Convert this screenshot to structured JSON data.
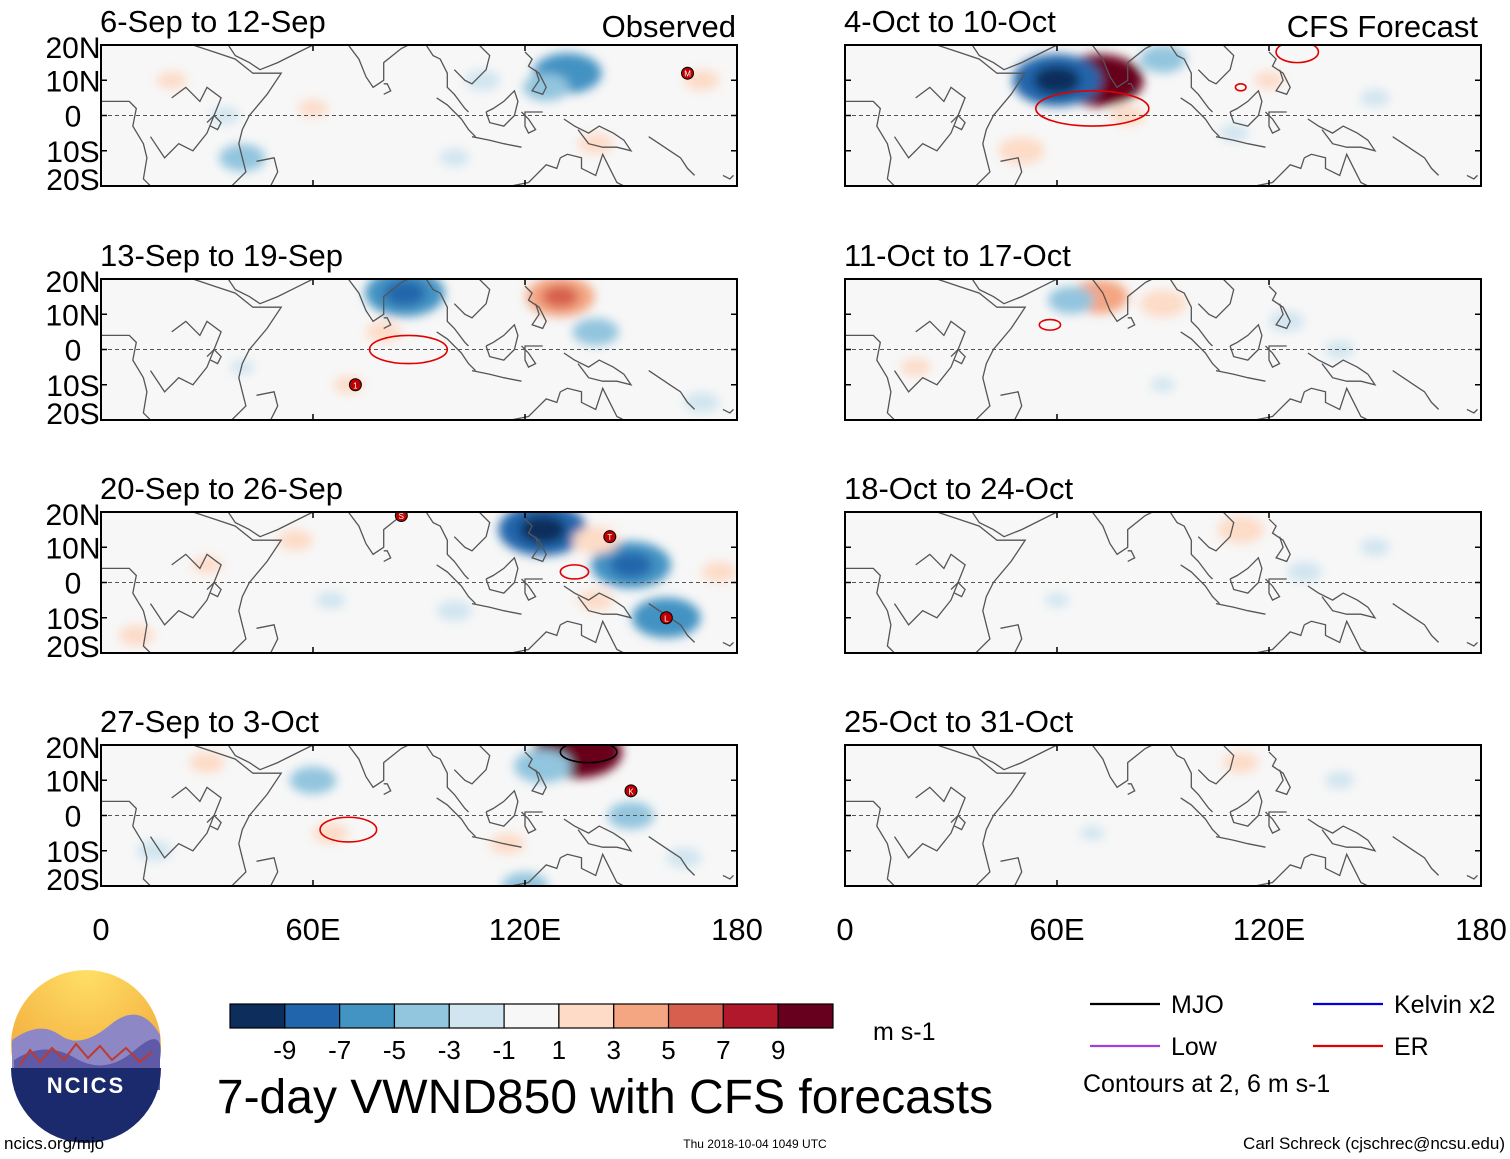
{
  "title": "7-day VWND850 with CFS forecasts",
  "left_header": "Observed",
  "right_header": "CFS Forecast",
  "units": "m s-1",
  "footer": {
    "url": "ncics.org/mjo",
    "timestamp": "Thu 2018-10-04 1049 UTC",
    "author": "Carl Schreck (cjschrec@ncsu.edu)"
  },
  "logo_text": "NCICS",
  "colorbar": {
    "colors": [
      "#0d2e5c",
      "#2166ac",
      "#4393c3",
      "#92c5de",
      "#d1e5f0",
      "#f7f7f7",
      "#fddbc7",
      "#f4a582",
      "#d6604d",
      "#b2182b",
      "#67001f"
    ],
    "labels": [
      "-9",
      "-7",
      "-5",
      "-3",
      "-1",
      "1",
      "3",
      "5",
      "7",
      "9"
    ]
  },
  "legend": {
    "items": [
      {
        "label": "MJO",
        "color": "#000000"
      },
      {
        "label": "Kelvin x2",
        "color": "#0000dd"
      },
      {
        "label": "Low",
        "color": "#a040e0"
      },
      {
        "label": "ER",
        "color": "#e00000"
      }
    ],
    "note": "Contours at 2, 6 m s-1"
  },
  "chart_data": {
    "type": "heatmap",
    "variable": "VWND850",
    "lon_range": [
      0,
      180
    ],
    "lat_range": [
      -20,
      20
    ],
    "x_ticks": [
      "0",
      "60E",
      "120E",
      "180"
    ],
    "y_ticks": [
      "20N",
      "10N",
      "0",
      "10S",
      "20S"
    ],
    "panels": [
      {
        "title": "6-Sep to 12-Sep",
        "kind": "observed",
        "anomalies": [
          {
            "lon": 132,
            "lat": 12,
            "v": -5
          },
          {
            "lon": 126,
            "lat": 8,
            "v": -3
          },
          {
            "lon": 108,
            "lat": 10,
            "v": -2
          },
          {
            "lon": 170,
            "lat": 10,
            "v": 2
          },
          {
            "lon": 60,
            "lat": 2,
            "v": 1.5
          },
          {
            "lon": 80,
            "lat": -8,
            "v": 1
          },
          {
            "lon": 140,
            "lat": -8,
            "v": 2
          },
          {
            "lon": 40,
            "lat": -12,
            "v": -3
          },
          {
            "lon": 35,
            "lat": 0,
            "v": -1.5
          },
          {
            "lon": 100,
            "lat": -12,
            "v": -1.5
          },
          {
            "lon": 20,
            "lat": 10,
            "v": 1.5
          }
        ],
        "contours": [],
        "storms": [
          {
            "lon": 166,
            "lat": 12,
            "label": "M"
          }
        ]
      },
      {
        "title": "13-Sep to 19-Sep",
        "kind": "observed",
        "anomalies": [
          {
            "lon": 86,
            "lat": 16,
            "v": -6
          },
          {
            "lon": 130,
            "lat": 15,
            "v": 5
          },
          {
            "lon": 140,
            "lat": 5,
            "v": -3
          },
          {
            "lon": 80,
            "lat": 5,
            "v": 2
          },
          {
            "lon": 70,
            "lat": -10,
            "v": 1.5
          },
          {
            "lon": 55,
            "lat": 12,
            "v": 1
          },
          {
            "lon": 170,
            "lat": -15,
            "v": -2
          },
          {
            "lon": 110,
            "lat": -15,
            "v": 1
          },
          {
            "lon": 40,
            "lat": -5,
            "v": -1
          }
        ],
        "contours": [
          {
            "type": "ER",
            "lon": 87,
            "lat": 0,
            "rx": 11,
            "ry": 4
          }
        ],
        "storms": [
          {
            "lon": 72,
            "lat": -10,
            "label": "1"
          }
        ]
      },
      {
        "title": "20-Sep to 26-Sep",
        "kind": "observed",
        "anomalies": [
          {
            "lon": 125,
            "lat": 15,
            "v": -7
          },
          {
            "lon": 150,
            "lat": 5,
            "v": -6
          },
          {
            "lon": 160,
            "lat": -10,
            "v": -5
          },
          {
            "lon": 140,
            "lat": 12,
            "v": 3
          },
          {
            "lon": 140,
            "lat": -5,
            "v": 2
          },
          {
            "lon": 55,
            "lat": 12,
            "v": 2
          },
          {
            "lon": 10,
            "lat": -15,
            "v": 2
          },
          {
            "lon": 100,
            "lat": -8,
            "v": -2
          },
          {
            "lon": 65,
            "lat": -5,
            "v": -1.5
          },
          {
            "lon": 30,
            "lat": 5,
            "v": 1.5
          },
          {
            "lon": 175,
            "lat": 3,
            "v": 2
          }
        ],
        "contours": [
          {
            "type": "ER",
            "lon": 134,
            "lat": 3,
            "rx": 4,
            "ry": 2
          }
        ],
        "storms": [
          {
            "lon": 85,
            "lat": 19,
            "label": "S"
          },
          {
            "lon": 144,
            "lat": 13,
            "label": "T"
          },
          {
            "lon": 160,
            "lat": -10,
            "label": "L"
          }
        ]
      },
      {
        "title": "27-Sep to 3-Oct",
        "kind": "observed",
        "anomalies": [
          {
            "lon": 135,
            "lat": 18,
            "v": 10
          },
          {
            "lon": 125,
            "lat": 14,
            "v": -4
          },
          {
            "lon": 30,
            "lat": 15,
            "v": 2
          },
          {
            "lon": 60,
            "lat": 10,
            "v": -3
          },
          {
            "lon": 65,
            "lat": -5,
            "v": 2
          },
          {
            "lon": 150,
            "lat": 0,
            "v": -3
          },
          {
            "lon": 115,
            "lat": -8,
            "v": 2
          },
          {
            "lon": 120,
            "lat": -20,
            "v": -3
          },
          {
            "lon": 165,
            "lat": -12,
            "v": -2
          },
          {
            "lon": 15,
            "lat": -10,
            "v": -2
          }
        ],
        "contours": [
          {
            "type": "ER",
            "lon": 70,
            "lat": -4,
            "rx": 8,
            "ry": 3.5
          },
          {
            "type": "MJO",
            "lon": 138,
            "lat": 18,
            "rx": 8,
            "ry": 3
          }
        ],
        "storms": [
          {
            "lon": 150,
            "lat": 7,
            "label": "K"
          }
        ]
      },
      {
        "title": "4-Oct to 10-Oct",
        "kind": "forecast",
        "anomalies": [
          {
            "lon": 72,
            "lat": 10,
            "v": 10
          },
          {
            "lon": 60,
            "lat": 10,
            "v": -8
          },
          {
            "lon": 90,
            "lat": 16,
            "v": -3
          },
          {
            "lon": 50,
            "lat": -10,
            "v": 3
          },
          {
            "lon": 80,
            "lat": 0,
            "v": 2
          },
          {
            "lon": 110,
            "lat": -5,
            "v": -1.5
          },
          {
            "lon": 120,
            "lat": 10,
            "v": 1.5
          },
          {
            "lon": 150,
            "lat": 5,
            "v": -1.5
          },
          {
            "lon": 30,
            "lat": 5,
            "v": 1
          }
        ],
        "contours": [
          {
            "type": "ER",
            "lon": 70,
            "lat": 2,
            "rx": 16,
            "ry": 5
          },
          {
            "type": "ER",
            "lon": 128,
            "lat": 18,
            "rx": 6,
            "ry": 3
          },
          {
            "type": "ER",
            "lon": 112,
            "lat": 8,
            "rx": 1.5,
            "ry": 1
          }
        ],
        "storms": []
      },
      {
        "title": "11-Oct to 17-Oct",
        "kind": "forecast",
        "anomalies": [
          {
            "lon": 72,
            "lat": 15,
            "v": 4
          },
          {
            "lon": 64,
            "lat": 14,
            "v": -3
          },
          {
            "lon": 90,
            "lat": 13,
            "v": 3
          },
          {
            "lon": 125,
            "lat": 8,
            "v": -2
          },
          {
            "lon": 140,
            "lat": 0,
            "v": -1.5
          },
          {
            "lon": 20,
            "lat": -5,
            "v": 1.5
          },
          {
            "lon": 90,
            "lat": -10,
            "v": -1
          }
        ],
        "contours": [
          {
            "type": "ER",
            "lon": 58,
            "lat": 7,
            "rx": 3,
            "ry": 1.5
          }
        ],
        "storms": []
      },
      {
        "title": "18-Oct to 24-Oct",
        "kind": "forecast",
        "anomalies": [
          {
            "lon": 112,
            "lat": 15,
            "v": 3
          },
          {
            "lon": 130,
            "lat": 3,
            "v": -2
          },
          {
            "lon": 150,
            "lat": 10,
            "v": -1.5
          },
          {
            "lon": 60,
            "lat": -5,
            "v": -1
          },
          {
            "lon": 20,
            "lat": 10,
            "v": 1
          },
          {
            "lon": 150,
            "lat": -12,
            "v": 1
          }
        ],
        "contours": [],
        "storms": []
      },
      {
        "title": "25-Oct to 31-Oct",
        "kind": "forecast",
        "anomalies": [
          {
            "lon": 112,
            "lat": 15,
            "v": 2
          },
          {
            "lon": 140,
            "lat": 10,
            "v": -1.5
          },
          {
            "lon": 70,
            "lat": -5,
            "v": -1
          },
          {
            "lon": 150,
            "lat": -10,
            "v": 1
          },
          {
            "lon": 30,
            "lat": 10,
            "v": 1
          }
        ],
        "contours": [],
        "storms": []
      }
    ]
  }
}
